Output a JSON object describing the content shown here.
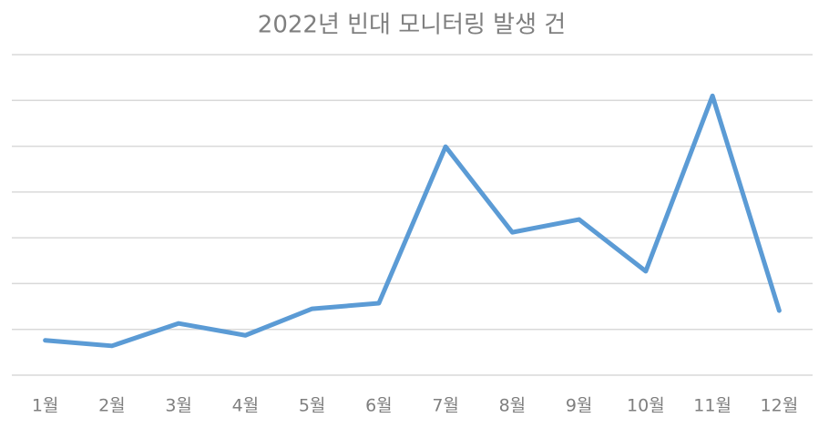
{
  "chart_data": {
    "type": "line",
    "title": "2022년 빈대 모니터링 발생 건",
    "categories": [
      "1월",
      "2월",
      "3월",
      "4월",
      "5월",
      "6월",
      "7월",
      "8월",
      "9월",
      "10월",
      "11월",
      "12월"
    ],
    "series": [
      {
        "color": "#5b9bd5",
        "values": [
          0.76,
          0.64,
          1.13,
          0.87,
          1.45,
          1.57,
          4.99,
          3.12,
          3.4,
          2.27,
          6.1,
          1.41
        ]
      }
    ],
    "ylim": [
      0,
      7
    ],
    "yticks": [
      0,
      1,
      2,
      3,
      4,
      5,
      6,
      7
    ],
    "grid": true,
    "ytick_labels": false
  }
}
